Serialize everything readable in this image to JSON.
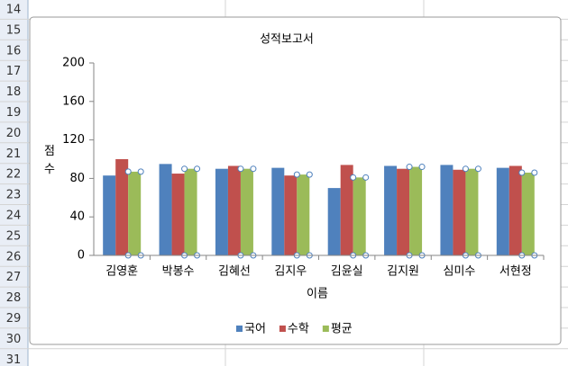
{
  "sheet": {
    "rows": [
      14,
      15,
      16,
      17,
      18,
      19,
      20,
      21,
      22,
      23,
      24,
      25,
      26,
      27,
      28,
      29,
      30,
      31
    ]
  },
  "chart_data": {
    "type": "bar",
    "title": "성적보고서",
    "x_label": "이름",
    "y_label": "점수",
    "categories": [
      "김영훈",
      "박봉수",
      "김혜선",
      "김지우",
      "김윤실",
      "김지원",
      "심미수",
      "서현정"
    ],
    "series": [
      {
        "name": "국어",
        "color": "#4f81bd",
        "values": [
          83,
          95,
          90,
          91,
          70,
          93,
          94,
          91
        ]
      },
      {
        "name": "수학",
        "color": "#c0504d",
        "values": [
          100,
          85,
          93,
          83,
          94,
          90,
          89,
          93
        ]
      },
      {
        "name": "평균",
        "color": "#9bbb59",
        "values": [
          87,
          90,
          90,
          84,
          81,
          92,
          90,
          86
        ]
      }
    ],
    "ylim": [
      0,
      200
    ],
    "yticks": [
      0,
      40,
      80,
      120,
      160,
      200
    ],
    "grid": false,
    "legend": "bottom"
  }
}
